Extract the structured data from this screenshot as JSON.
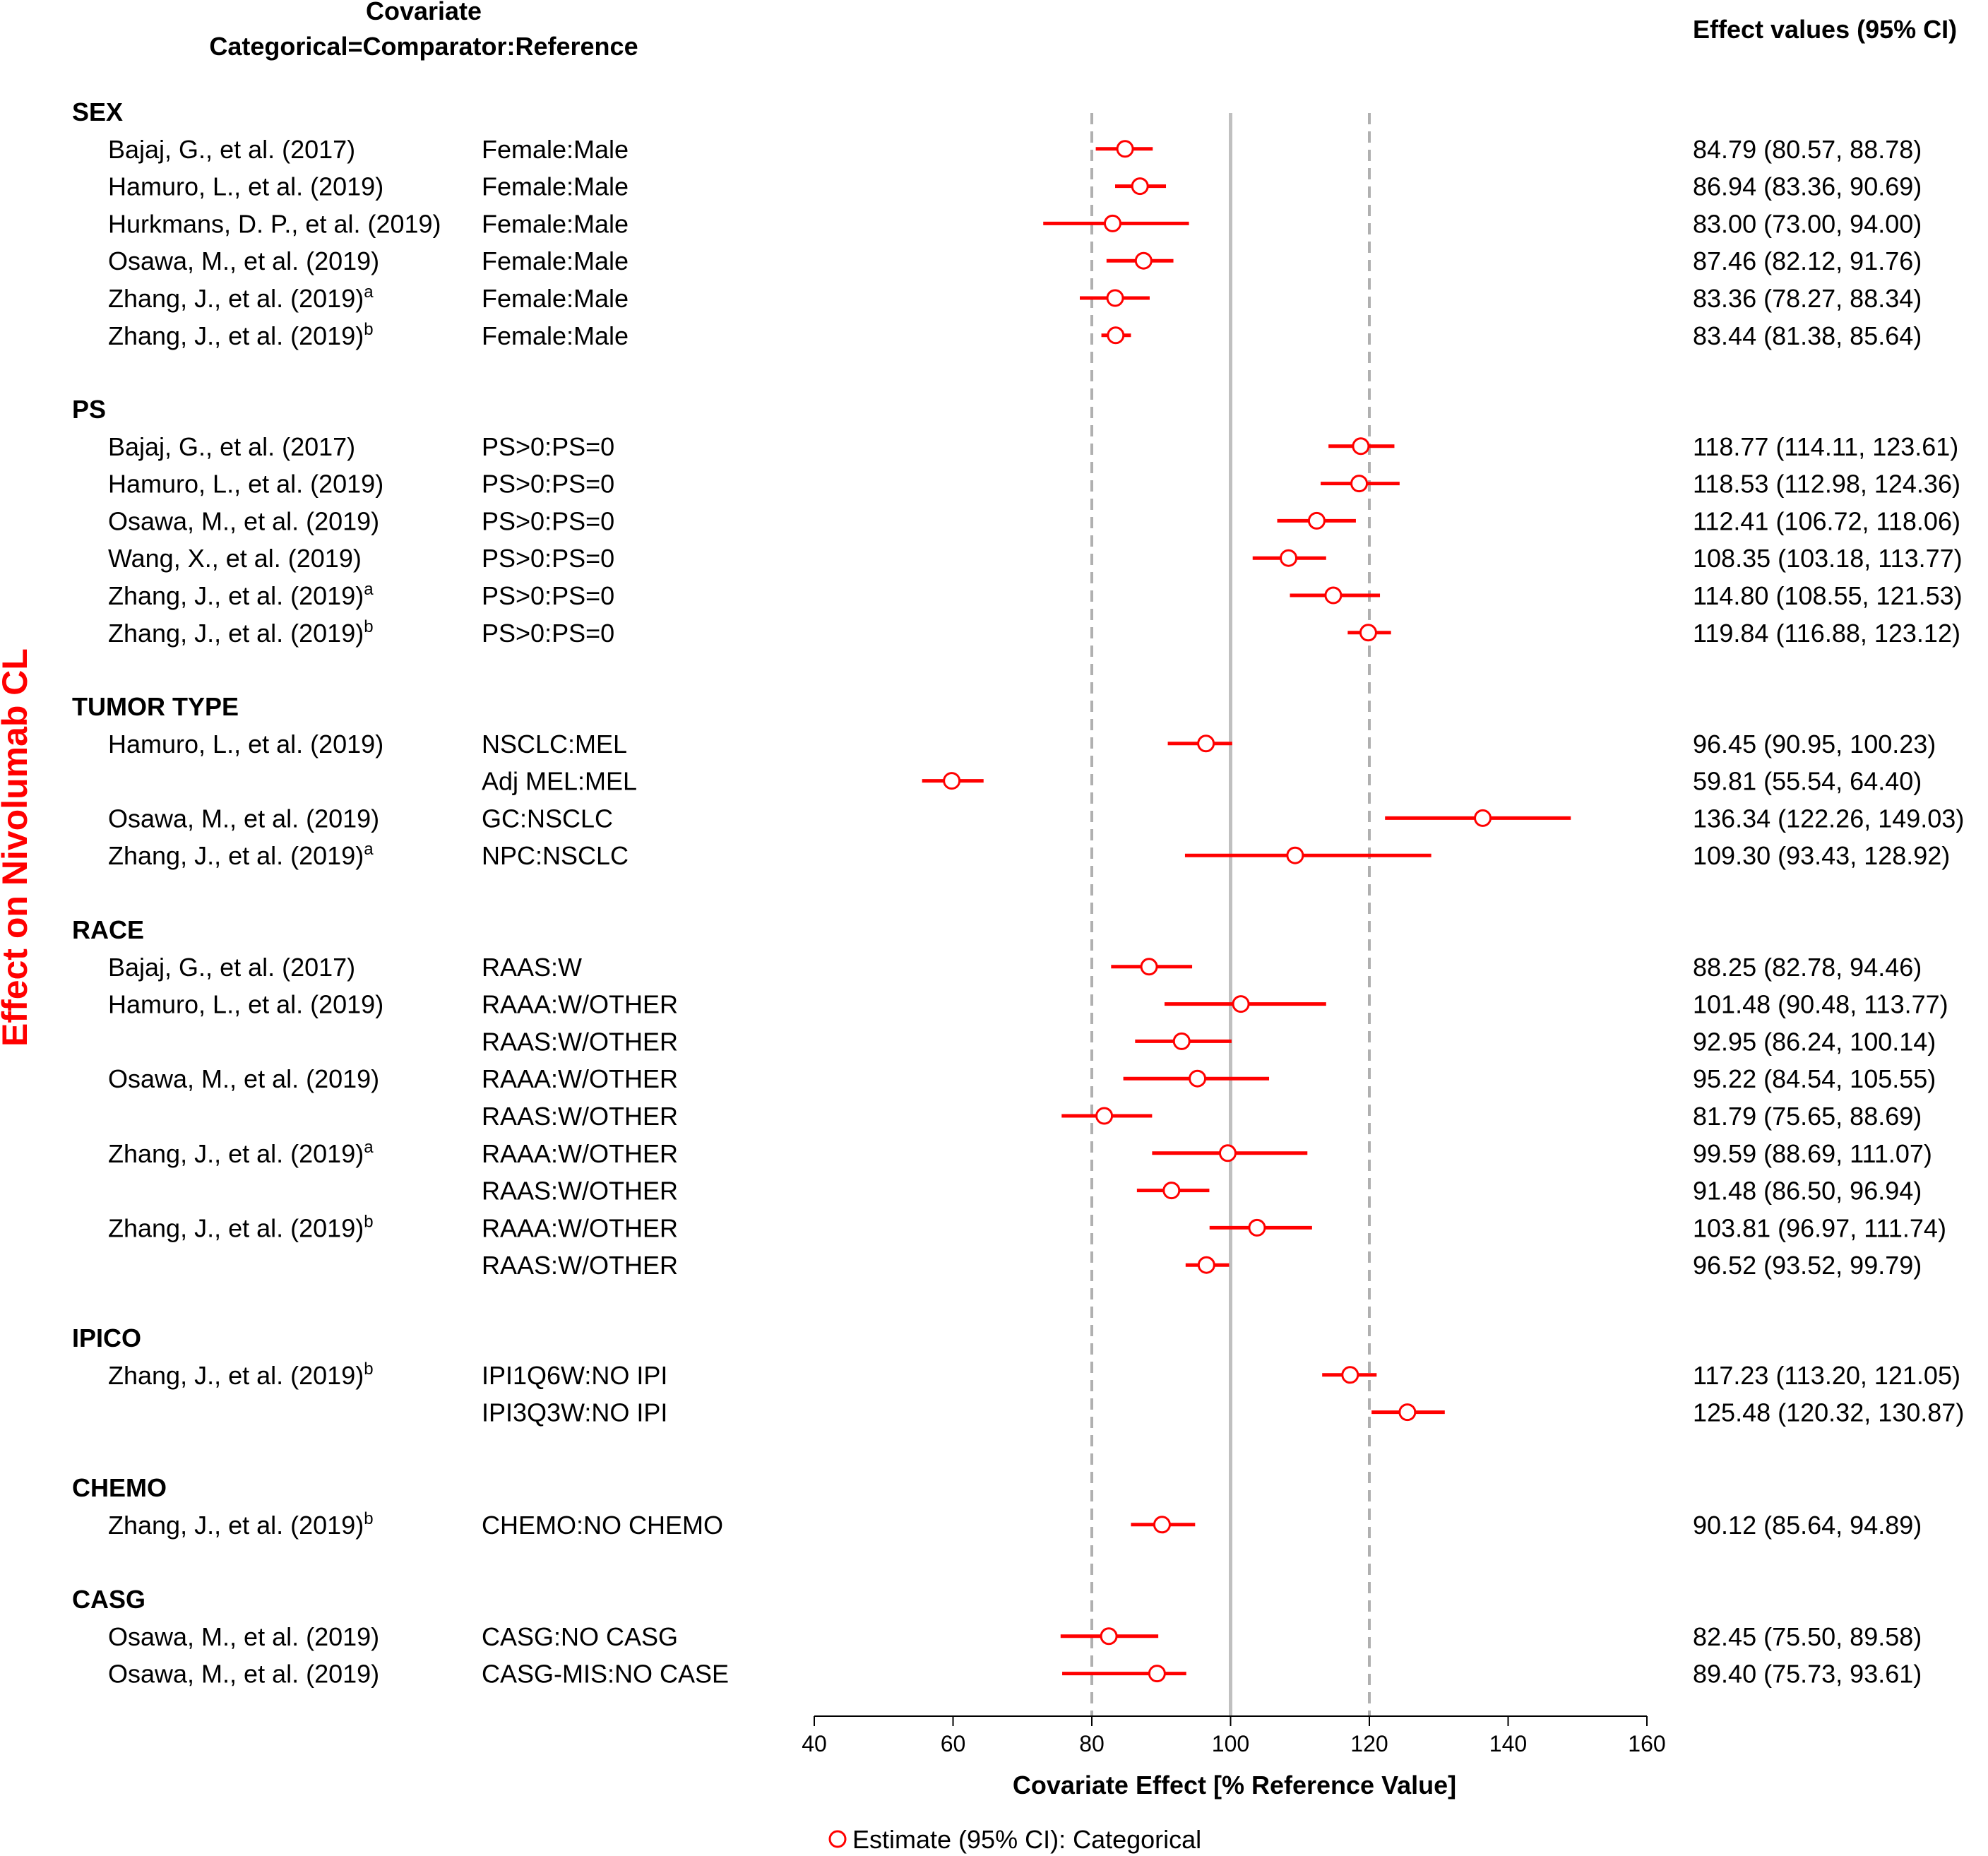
{
  "chart_data": {
    "type": "forest",
    "title": "Effect on Nivolumab CL",
    "header": {
      "covariate": "Covariate",
      "sub": "Categorical=Comparator:Reference",
      "values": "Effect values (95% CI)"
    },
    "xlabel": "Covariate Effect [% Reference Value]",
    "xlim": [
      40,
      160
    ],
    "xticks": [
      40,
      60,
      80,
      100,
      120,
      140,
      160
    ],
    "ref_lines": {
      "solid": 100,
      "dashed": [
        80,
        120
      ]
    },
    "legend": "Estimate (95% CI): Categorical",
    "colors": {
      "marker": "#ff0000",
      "ref_solid": "#c0c0c0",
      "ref_dashed": "#b0b0b0",
      "title": "#ff0000"
    },
    "groups": [
      {
        "name": "SEX",
        "rows": [
          {
            "study": "Bajaj, G., et al. (2017)",
            "sup": "",
            "comparison": "Female:Male",
            "est": 84.79,
            "lo": 80.57,
            "hi": 88.78,
            "text": "84.79 (80.57, 88.78)"
          },
          {
            "study": "Hamuro, L., et al. (2019)",
            "sup": "",
            "comparison": "Female:Male",
            "est": 86.94,
            "lo": 83.36,
            "hi": 90.69,
            "text": "86.94 (83.36, 90.69)"
          },
          {
            "study": "Hurkmans, D. P., et al. (2019)",
            "sup": "",
            "comparison": "Female:Male",
            "est": 83.0,
            "lo": 73.0,
            "hi": 94.0,
            "text": "83.00 (73.00, 94.00)"
          },
          {
            "study": "Osawa, M., et al. (2019)",
            "sup": "",
            "comparison": "Female:Male",
            "est": 87.46,
            "lo": 82.12,
            "hi": 91.76,
            "text": "87.46 (82.12, 91.76)"
          },
          {
            "study": "Zhang, J., et al. (2019)",
            "sup": "a",
            "comparison": "Female:Male",
            "est": 83.36,
            "lo": 78.27,
            "hi": 88.34,
            "text": "83.36 (78.27, 88.34)"
          },
          {
            "study": "Zhang, J., et al. (2019)",
            "sup": "b",
            "comparison": "Female:Male",
            "est": 83.44,
            "lo": 81.38,
            "hi": 85.64,
            "text": "83.44 (81.38, 85.64)"
          }
        ]
      },
      {
        "name": "PS",
        "rows": [
          {
            "study": "Bajaj, G., et al. (2017)",
            "sup": "",
            "comparison": "PS>0:PS=0",
            "est": 118.77,
            "lo": 114.11,
            "hi": 123.61,
            "text": "118.77 (114.11, 123.61)"
          },
          {
            "study": "Hamuro, L., et al. (2019)",
            "sup": "",
            "comparison": "PS>0:PS=0",
            "est": 118.53,
            "lo": 112.98,
            "hi": 124.36,
            "text": "118.53 (112.98, 124.36)"
          },
          {
            "study": "Osawa, M., et al. (2019)",
            "sup": "",
            "comparison": "PS>0:PS=0",
            "est": 112.41,
            "lo": 106.72,
            "hi": 118.06,
            "text": "112.41 (106.72, 118.06)"
          },
          {
            "study": "Wang, X., et al. (2019)",
            "sup": "",
            "comparison": "PS>0:PS=0",
            "est": 108.35,
            "lo": 103.18,
            "hi": 113.77,
            "text": "108.35 (103.18, 113.77)"
          },
          {
            "study": "Zhang, J., et al. (2019)",
            "sup": "a",
            "comparison": "PS>0:PS=0",
            "est": 114.8,
            "lo": 108.55,
            "hi": 121.53,
            "text": "114.80 (108.55, 121.53)"
          },
          {
            "study": "Zhang, J., et al. (2019)",
            "sup": "b",
            "comparison": "PS>0:PS=0",
            "est": 119.84,
            "lo": 116.88,
            "hi": 123.12,
            "text": "119.84 (116.88, 123.12)"
          }
        ]
      },
      {
        "name": "TUMOR TYPE",
        "rows": [
          {
            "study": "Hamuro, L., et al. (2019)",
            "sup": "",
            "comparison": "NSCLC:MEL",
            "est": 96.45,
            "lo": 90.95,
            "hi": 100.23,
            "text": "96.45 (90.95, 100.23)"
          },
          {
            "study": "",
            "sup": "",
            "comparison": "Adj MEL:MEL",
            "est": 59.81,
            "lo": 55.54,
            "hi": 64.4,
            "text": "59.81 (55.54, 64.40)"
          },
          {
            "study": "Osawa, M., et al. (2019)",
            "sup": "",
            "comparison": "GC:NSCLC",
            "est": 136.34,
            "lo": 122.26,
            "hi": 149.03,
            "text": "136.34 (122.26, 149.03)"
          },
          {
            "study": "Zhang, J., et al. (2019)",
            "sup": "a",
            "comparison": "NPC:NSCLC",
            "est": 109.3,
            "lo": 93.43,
            "hi": 128.92,
            "text": "109.30 (93.43, 128.92)"
          }
        ]
      },
      {
        "name": "RACE",
        "rows": [
          {
            "study": "Bajaj, G., et al. (2017)",
            "sup": "",
            "comparison": "RAAS:W",
            "est": 88.25,
            "lo": 82.78,
            "hi": 94.46,
            "text": "88.25 (82.78, 94.46)"
          },
          {
            "study": "Hamuro, L., et al. (2019)",
            "sup": "",
            "comparison": "RAAA:W/OTHER",
            "est": 101.48,
            "lo": 90.48,
            "hi": 113.77,
            "text": "101.48 (90.48, 113.77)"
          },
          {
            "study": "",
            "sup": "",
            "comparison": "RAAS:W/OTHER",
            "est": 92.95,
            "lo": 86.24,
            "hi": 100.14,
            "text": "92.95 (86.24, 100.14)"
          },
          {
            "study": "Osawa, M., et al. (2019)",
            "sup": "",
            "comparison": "RAAA:W/OTHER",
            "est": 95.22,
            "lo": 84.54,
            "hi": 105.55,
            "text": "95.22 (84.54, 105.55)"
          },
          {
            "study": "",
            "sup": "",
            "comparison": "RAAS:W/OTHER",
            "est": 81.79,
            "lo": 75.65,
            "hi": 88.69,
            "text": "81.79 (75.65, 88.69)"
          },
          {
            "study": "Zhang, J., et al. (2019)",
            "sup": "a",
            "comparison": "RAAA:W/OTHER",
            "est": 99.59,
            "lo": 88.69,
            "hi": 111.07,
            "text": "99.59 (88.69, 111.07)"
          },
          {
            "study": "",
            "sup": "",
            "comparison": "RAAS:W/OTHER",
            "est": 91.48,
            "lo": 86.5,
            "hi": 96.94,
            "text": "91.48 (86.50, 96.94)"
          },
          {
            "study": "Zhang, J., et al. (2019)",
            "sup": "b",
            "comparison": "RAAA:W/OTHER",
            "est": 103.81,
            "lo": 96.97,
            "hi": 111.74,
            "text": "103.81 (96.97, 111.74)"
          },
          {
            "study": "",
            "sup": "",
            "comparison": "RAAS:W/OTHER",
            "est": 96.52,
            "lo": 93.52,
            "hi": 99.79,
            "text": "96.52 (93.52, 99.79)"
          }
        ]
      },
      {
        "name": "IPICO",
        "rows": [
          {
            "study": "Zhang, J., et al. (2019)",
            "sup": "b",
            "comparison": "IPI1Q6W:NO IPI",
            "est": 117.23,
            "lo": 113.2,
            "hi": 121.05,
            "text": "117.23 (113.20, 121.05)"
          },
          {
            "study": "",
            "sup": "",
            "comparison": "IPI3Q3W:NO IPI",
            "est": 125.48,
            "lo": 120.32,
            "hi": 130.87,
            "text": "125.48 (120.32, 130.87)"
          }
        ]
      },
      {
        "name": "CHEMO",
        "rows": [
          {
            "study": "Zhang, J., et al. (2019)",
            "sup": "b",
            "comparison": "CHEMO:NO CHEMO",
            "est": 90.12,
            "lo": 85.64,
            "hi": 94.89,
            "text": "90.12 (85.64, 94.89)"
          }
        ]
      },
      {
        "name": "CASG",
        "rows": [
          {
            "study": "Osawa, M., et al. (2019)",
            "sup": "",
            "comparison": "CASG:NO CASG",
            "est": 82.45,
            "lo": 75.5,
            "hi": 89.58,
            "text": "82.45 (75.50, 89.58)"
          },
          {
            "study": "Osawa, M., et al. (2019)",
            "sup": "",
            "comparison": "CASG-MIS:NO CASE",
            "est": 89.4,
            "lo": 75.73,
            "hi": 93.61,
            "text": "89.40 (75.73, 93.61)"
          }
        ]
      }
    ]
  }
}
